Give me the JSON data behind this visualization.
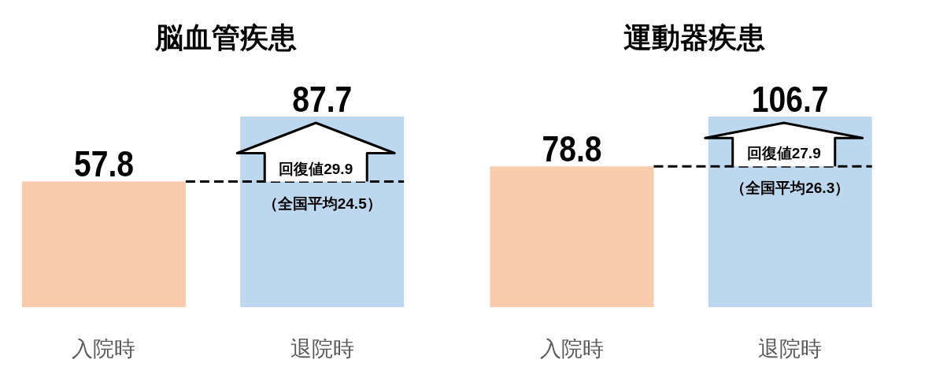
{
  "chart_data": [
    {
      "type": "bar",
      "title": "脳血管疾患",
      "categories": [
        "入院時",
        "退院時"
      ],
      "values": [
        57.8,
        87.7
      ],
      "colors": [
        "#f8cbad",
        "#bdd7ee"
      ],
      "data_labels": true,
      "ref_lines": [
        {
          "axis": "y",
          "value": 57.8,
          "line_style": "dashed",
          "color": "#000000"
        }
      ],
      "annotations": [
        "回復値29.9",
        "（全国平均24.5）"
      ]
    },
    {
      "type": "bar",
      "title": "運動器疾患",
      "categories": [
        "入院時",
        "退院時"
      ],
      "values": [
        78.8,
        106.7
      ],
      "colors": [
        "#f8cbad",
        "#bdd7ee"
      ],
      "data_labels": true,
      "ref_lines": [
        {
          "axis": "y",
          "value": 78.8,
          "line_style": "dashed",
          "color": "#000000"
        }
      ],
      "annotations": [
        "回復値27.9",
        "（全国平均26.3）"
      ]
    }
  ]
}
